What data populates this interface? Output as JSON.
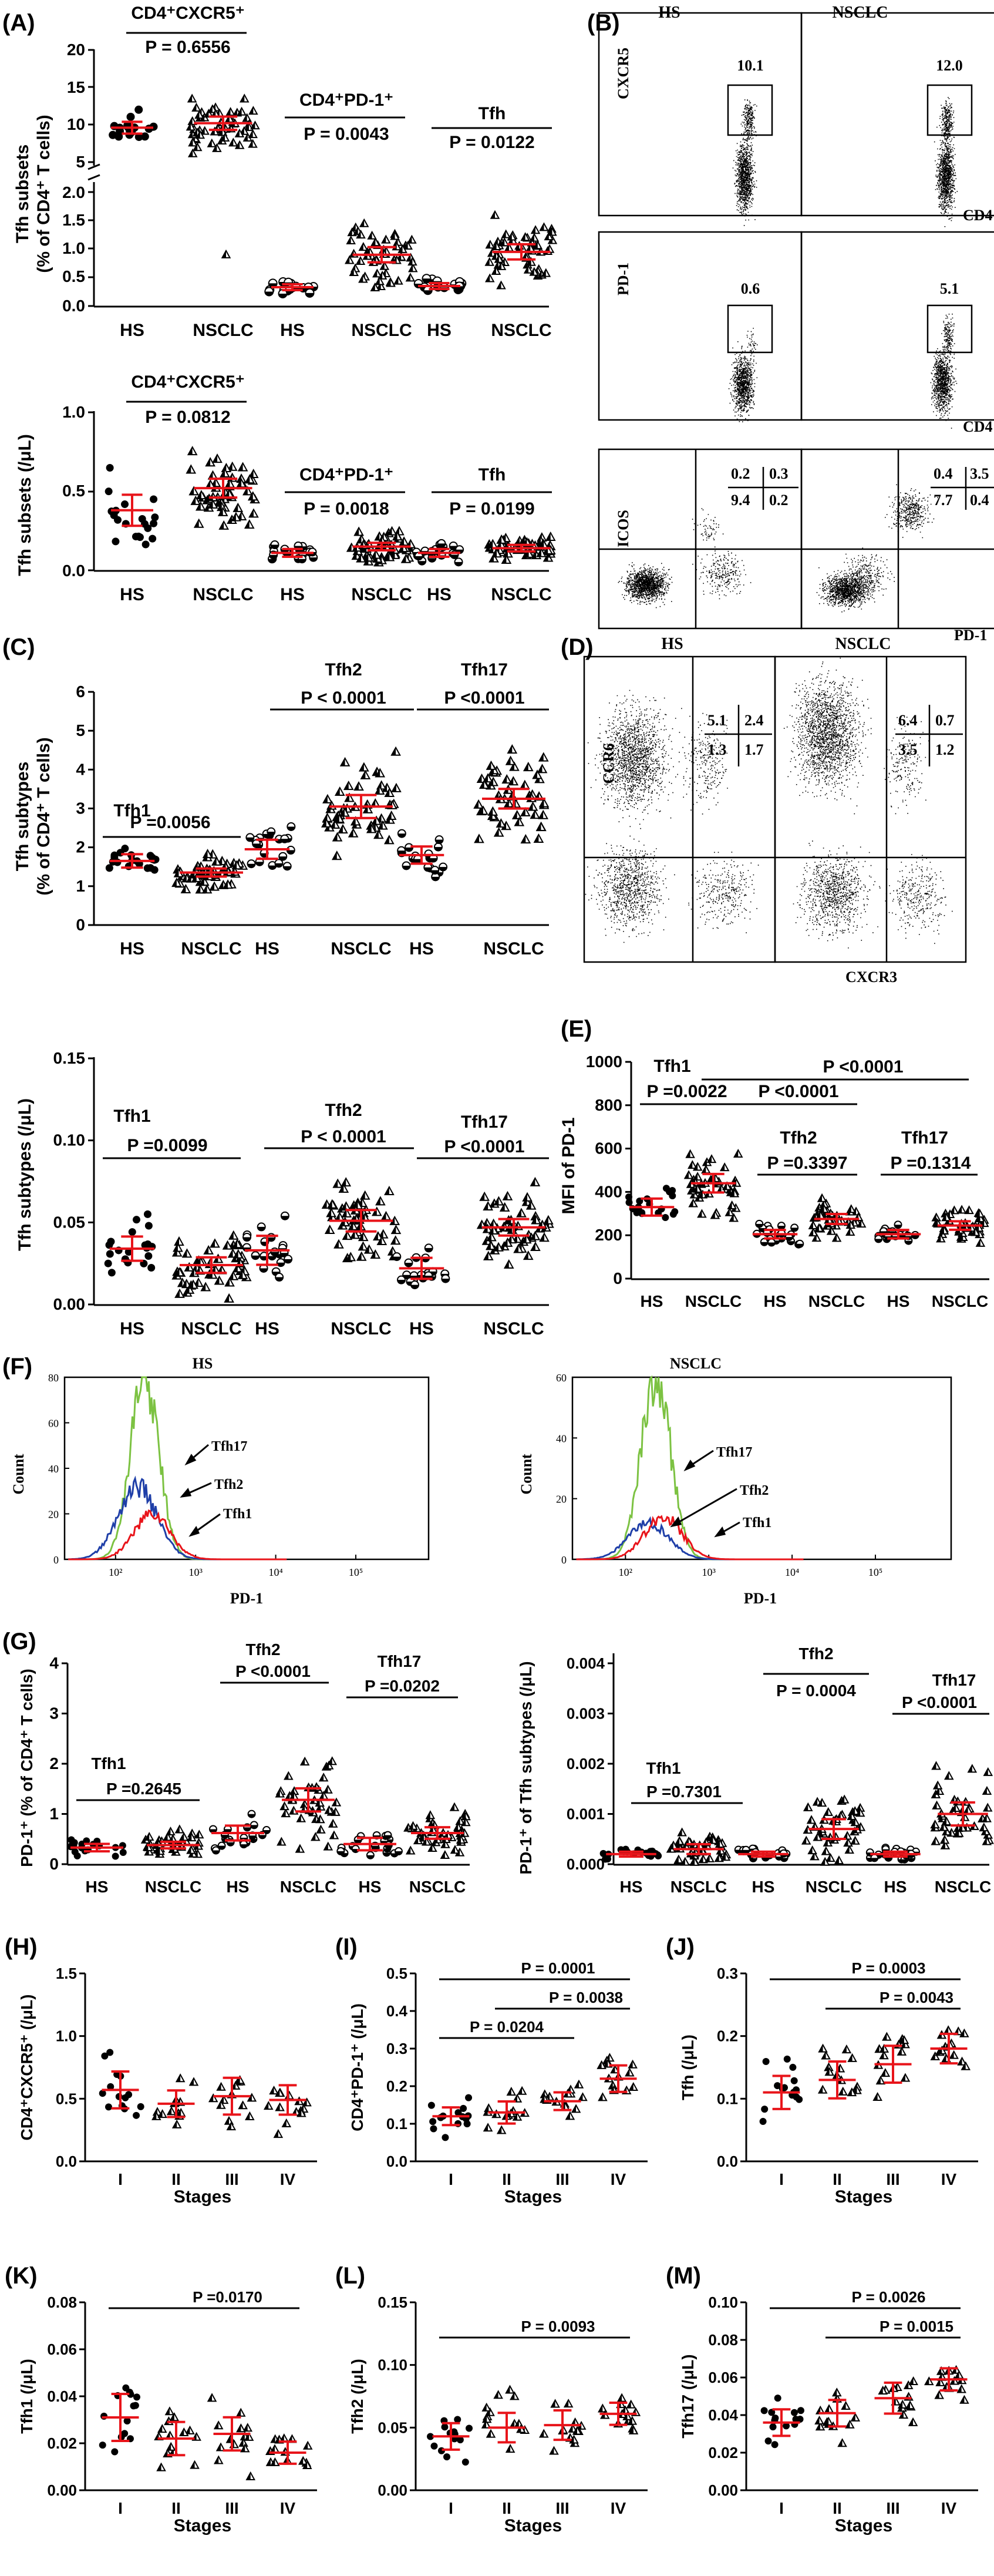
{
  "panels": [
    {
      "id": "A_top",
      "letter": "(A)",
      "ylabel_lines": [
        "Tfh subsets",
        "(% of CD4⁺ T cells)"
      ],
      "groups": [
        "HS",
        "NSCLC",
        "HS",
        "NSCLC",
        "HS",
        "NSCLC"
      ],
      "comparisons": [
        {
          "label": "CD4⁺CXCR5⁺",
          "p": "P = 0.6556"
        },
        {
          "label": "CD4⁺PD-1⁺",
          "p": "P = 0.0043"
        },
        {
          "label": "Tfh",
          "p": "P = 0.0122"
        }
      ]
    },
    {
      "id": "A_bottom",
      "letter": "",
      "ylabel_lines": [
        "Tfh subsets (/μL)"
      ],
      "groups": [
        "HS",
        "NSCLC",
        "HS",
        "NSCLC",
        "HS",
        "NSCLC"
      ],
      "comparisons": [
        {
          "label": "CD4⁺CXCR5⁺",
          "p": "P = 0.0812"
        },
        {
          "label": "CD4⁺PD-1⁺",
          "p": "P = 0.0018"
        },
        {
          "label": "Tfh",
          "p": "P = 0.0199"
        }
      ]
    },
    {
      "id": "C_top",
      "letter": "(C)",
      "ylabel_lines": [
        "Tfh subtypes",
        "(% of CD4⁺ T cells)"
      ],
      "groups": [
        "HS",
        "NSCLC",
        "HS",
        "NSCLC",
        "HS",
        "NSCLC"
      ],
      "comparisons": [
        {
          "label": "Tfh1",
          "p": "P =0.0056"
        },
        {
          "label": "Tfh2",
          "p": "P < 0.0001"
        },
        {
          "label": "Tfh17",
          "p": "P <0.0001"
        }
      ]
    },
    {
      "id": "C_bottom",
      "letter": "",
      "ylabel_lines": [
        "Tfh subtypes (/μL)"
      ],
      "groups": [
        "HS",
        "NSCLC",
        "HS",
        "NSCLC",
        "HS",
        "NSCLC"
      ],
      "comparisons": [
        {
          "label": "Tfh1",
          "p": "P =0.0099"
        },
        {
          "label": "Tfh2",
          "p": "P < 0.0001"
        },
        {
          "label": "Tfh17",
          "p": "P <0.0001"
        }
      ]
    },
    {
      "id": "E",
      "letter": "(E)",
      "ylabel_lines": [
        "MFI of PD-1"
      ],
      "groups": [
        "HS",
        "NSCLC",
        "HS",
        "NSCLC",
        "HS",
        "NSCLC"
      ],
      "comparisons": [
        {
          "label": "Tfh1",
          "p": "P =0.0022"
        },
        {
          "label": "Tfh2",
          "p": "P =0.3397"
        },
        {
          "label": "Tfh17",
          "p": "P =0.1314"
        }
      ],
      "extra": [
        {
          "p": "P <0.0001"
        },
        {
          "p": "P <0.0001"
        }
      ]
    },
    {
      "id": "G_left",
      "letter": "(G)",
      "ylabel_lines": [
        "PD-1⁺ (% of CD4⁺ T cells)"
      ],
      "groups": [
        "HS",
        "NSCLC",
        "HS",
        "NSCLC",
        "HS",
        "NSCLC"
      ],
      "comparisons": [
        {
          "label": "Tfh1",
          "p": "P =0.2645"
        },
        {
          "label": "Tfh2",
          "p": "P <0.0001"
        },
        {
          "label": "Tfh17",
          "p": "P =0.0202"
        }
      ]
    },
    {
      "id": "G_right",
      "letter": "",
      "ylabel_lines": [
        "PD-1⁺ of Tfh subtypes (/μL)"
      ],
      "groups": [
        "HS",
        "NSCLC",
        "HS",
        "NSCLC",
        "HS",
        "NSCLC"
      ],
      "comparisons": [
        {
          "label": "Tfh1",
          "p": "P =0.7301"
        },
        {
          "label": "Tfh2",
          "p": "P = 0.0004"
        },
        {
          "label": "Tfh17",
          "p": "P <0.0001"
        }
      ]
    },
    {
      "id": "H",
      "letter": "(H)",
      "ylabel_lines": [
        "CD4⁺CXCR5⁺ (/μL)"
      ],
      "xlabel": "Stages",
      "groups": [
        "I",
        "II",
        "III",
        "IV"
      ],
      "comparisons": []
    },
    {
      "id": "I",
      "letter": "(I)",
      "ylabel_lines": [
        "CD4⁺PD-1⁺ (/μL)"
      ],
      "xlabel": "Stages",
      "groups": [
        "I",
        "II",
        "III",
        "IV"
      ],
      "comparisons": [
        {
          "p": "P = 0.0001"
        },
        {
          "p": "P = 0.0038"
        },
        {
          "p": "P = 0.0204"
        }
      ]
    },
    {
      "id": "J",
      "letter": "(J)",
      "ylabel_lines": [
        "Tfh (/μL)"
      ],
      "xlabel": "Stages",
      "groups": [
        "I",
        "II",
        "III",
        "IV"
      ],
      "comparisons": [
        {
          "p": "P = 0.0003"
        },
        {
          "p": "P = 0.0043"
        }
      ]
    },
    {
      "id": "K",
      "letter": "(K)",
      "ylabel_lines": [
        "Tfh1 (/μL)"
      ],
      "xlabel": "Stages",
      "groups": [
        "I",
        "II",
        "III",
        "IV"
      ],
      "comparisons": [
        {
          "p": "P =0.0170"
        }
      ]
    },
    {
      "id": "L",
      "letter": "(L)",
      "ylabel_lines": [
        "Tfh2 (/μL)"
      ],
      "xlabel": "Stages",
      "groups": [
        "I",
        "II",
        "III",
        "IV"
      ],
      "comparisons": [
        {
          "p": "P = 0.0093"
        }
      ]
    },
    {
      "id": "M",
      "letter": "(M)",
      "ylabel_lines": [
        "Tfh17 (/μL)"
      ],
      "xlabel": "Stages",
      "groups": [
        "I",
        "II",
        "III",
        "IV"
      ],
      "comparisons": [
        {
          "p": "P = 0.0026"
        },
        {
          "p": "P = 0.0015"
        }
      ]
    }
  ],
  "flow_B": {
    "letter": "(B)",
    "col_labels": [
      "HS",
      "NSCLC"
    ],
    "row1": {
      "y_axis": "CXCR5",
      "x_axis": "CD4",
      "values": [
        "10.1",
        "12.0"
      ]
    },
    "row2": {
      "y_axis": "PD-1",
      "x_axis": "CD4",
      "values": [
        "0.6",
        "5.1"
      ]
    },
    "row3": {
      "y_axis": "ICOS",
      "x_axis": "PD-1",
      "quadrants": [
        [
          "0.2",
          "0.3",
          "9.4",
          "0.2"
        ],
        [
          "0.4",
          "3.5",
          "7.7",
          "0.4"
        ]
      ]
    }
  },
  "flow_D": {
    "letter": "(D)",
    "col_labels": [
      "HS",
      "NSCLC"
    ],
    "y_axis": "CCR6",
    "x_axis": "CXCR3",
    "quadrants": [
      [
        "5.1",
        "2.4",
        "1.3",
        "1.7"
      ],
      [
        "6.4",
        "0.7",
        "3.5",
        "1.2"
      ]
    ]
  },
  "histograms_F": {
    "letter": "(F)",
    "ylabel": "Count",
    "xlabel": "PD-1",
    "panels": [
      {
        "title": "HS"
      },
      {
        "title": "NSCLC"
      }
    ],
    "series": [
      {
        "name": "Tfh17",
        "color": "#7cc242"
      },
      {
        "name": "Tfh2",
        "color": "#1f3fa8"
      },
      {
        "name": "Tfh1",
        "color": "#e8141a"
      }
    ]
  },
  "colors": {
    "mean": "#e8141a",
    "axis": "#000000",
    "tfh17": "#7cc242",
    "tfh2": "#1f3fa8",
    "tfh1": "#e8141a"
  },
  "chart_data": [
    {
      "type": "scatter",
      "panel": "A_top",
      "ylabel": "Tfh subsets (% of CD4+ T cells)",
      "categories": [
        "HS",
        "NSCLC",
        "HS",
        "NSCLC",
        "HS",
        "NSCLC"
      ],
      "axis_break": {
        "lower": [
          0,
          2.0
        ],
        "upper": [
          5,
          20
        ]
      },
      "ylim": [
        0,
        20
      ],
      "y_ticks": [
        0,
        0.5,
        1.0,
        1.5,
        2.0,
        5,
        10,
        15,
        20
      ],
      "series": [
        {
          "values_mean": [
            9.6,
            10.2,
            0.33,
            0.9,
            0.35,
            0.95
          ]
        }
      ]
    },
    {
      "type": "scatter",
      "panel": "A_bottom",
      "ylabel": "Tfh subsets (/μL)",
      "categories": [
        "HS",
        "NSCLC",
        "HS",
        "NSCLC",
        "HS",
        "NSCLC"
      ],
      "ylim": [
        0,
        1.0
      ],
      "y_ticks": [
        0,
        0.5,
        1.0
      ],
      "series": [
        {
          "values_mean": [
            0.38,
            0.52,
            0.11,
            0.15,
            0.11,
            0.14
          ]
        }
      ]
    },
    {
      "type": "scatter",
      "panel": "C_top",
      "ylabel": "Tfh subtypes (% of CD4+ T cells)",
      "categories": [
        "HS",
        "NSCLC",
        "HS",
        "NSCLC",
        "HS",
        "NSCLC"
      ],
      "ylim": [
        0,
        6
      ],
      "y_ticks": [
        0,
        1,
        2,
        3,
        4,
        5,
        6
      ],
      "series": [
        {
          "values_mean": [
            1.65,
            1.35,
            1.95,
            3.05,
            1.8,
            3.25
          ]
        }
      ]
    },
    {
      "type": "scatter",
      "panel": "C_bottom",
      "ylabel": "Tfh subtypes (/μL)",
      "categories": [
        "HS",
        "NSCLC",
        "HS",
        "NSCLC",
        "HS",
        "NSCLC"
      ],
      "ylim": [
        0,
        0.15
      ],
      "y_ticks": [
        0,
        0.05,
        0.1,
        0.15
      ],
      "series": [
        {
          "values_mean": [
            0.034,
            0.024,
            0.033,
            0.051,
            0.022,
            0.047
          ]
        }
      ]
    },
    {
      "type": "scatter",
      "panel": "E",
      "ylabel": "MFI of PD-1",
      "categories": [
        "HS",
        "NSCLC",
        "HS",
        "NSCLC",
        "HS",
        "NSCLC"
      ],
      "ylim": [
        0,
        1000
      ],
      "y_ticks": [
        0,
        200,
        400,
        600,
        800,
        1000
      ],
      "series": [
        {
          "values_mean": [
            330,
            440,
            205,
            275,
            205,
            245
          ]
        }
      ]
    },
    {
      "type": "line",
      "panel": "F_HS",
      "xlabel": "PD-1",
      "ylabel": "Count",
      "x_scale": "log",
      "xlim": [
        10,
        1000000.0
      ],
      "ylim": [
        0,
        80
      ],
      "y_ticks": [
        0,
        20,
        40,
        60,
        80
      ],
      "x_ticks": [
        "10²",
        "10³",
        "10⁴",
        "10⁵"
      ],
      "series": [
        {
          "name": "Tfh17",
          "peak": 80
        },
        {
          "name": "Tfh2",
          "peak": 32
        },
        {
          "name": "Tfh1",
          "peak": 20
        }
      ]
    },
    {
      "type": "line",
      "panel": "F_NSCLC",
      "xlabel": "PD-1",
      "ylabel": "Count",
      "x_scale": "log",
      "xlim": [
        10,
        1000000.0
      ],
      "ylim": [
        0,
        60
      ],
      "y_ticks": [
        0,
        20,
        40,
        60
      ],
      "x_ticks": [
        "10²",
        "10³",
        "10⁴",
        "10⁵"
      ],
      "series": [
        {
          "name": "Tfh17",
          "peak": 60
        },
        {
          "name": "Tfh2",
          "peak": 12
        },
        {
          "name": "Tfh1",
          "peak": 14
        }
      ]
    },
    {
      "type": "scatter",
      "panel": "G_left",
      "ylabel": "PD-1+ (% of CD4+ T cells)",
      "categories": [
        "HS",
        "NSCLC",
        "HS",
        "NSCLC",
        "HS",
        "NSCLC"
      ],
      "ylim": [
        0,
        4
      ],
      "y_ticks": [
        0,
        1,
        2,
        3,
        4
      ],
      "series": [
        {
          "values_mean": [
            0.33,
            0.38,
            0.62,
            1.28,
            0.4,
            0.62
          ]
        }
      ]
    },
    {
      "type": "scatter",
      "panel": "G_right",
      "ylabel": "PD-1+ of Tfh subtypes (/μL)",
      "categories": [
        "HS",
        "NSCLC",
        "HS",
        "NSCLC",
        "HS",
        "NSCLC"
      ],
      "ylim": [
        0,
        0.004
      ],
      "y_ticks": [
        0,
        0.001,
        0.002,
        0.003,
        0.004
      ],
      "series": [
        {
          "values_mean": [
            0.0002,
            0.0003,
            0.0002,
            0.0007,
            0.0002,
            0.001
          ]
        }
      ]
    },
    {
      "type": "scatter",
      "panel": "H",
      "xlabel": "Stages",
      "ylabel": "CD4+CXCR5+ (/μL)",
      "categories": [
        "I",
        "II",
        "III",
        "IV"
      ],
      "ylim": [
        0,
        1.5
      ],
      "y_ticks": [
        0,
        0.5,
        1.0,
        1.5
      ],
      "series": [
        {
          "values_mean": [
            0.57,
            0.46,
            0.52,
            0.49
          ]
        }
      ]
    },
    {
      "type": "scatter",
      "panel": "I",
      "xlabel": "Stages",
      "ylabel": "CD4+PD-1+ (/μL)",
      "categories": [
        "I",
        "II",
        "III",
        "IV"
      ],
      "ylim": [
        0,
        0.5
      ],
      "y_ticks": [
        0,
        0.1,
        0.2,
        0.3,
        0.4,
        0.5
      ],
      "series": [
        {
          "values_mean": [
            0.12,
            0.13,
            0.16,
            0.22
          ]
        }
      ]
    },
    {
      "type": "scatter",
      "panel": "J",
      "xlabel": "Stages",
      "ylabel": "Tfh (/μL)",
      "categories": [
        "I",
        "II",
        "III",
        "IV"
      ],
      "ylim": [
        0,
        0.3
      ],
      "y_ticks": [
        0,
        0.1,
        0.2,
        0.3
      ],
      "series": [
        {
          "values_mean": [
            0.11,
            0.13,
            0.155,
            0.18
          ]
        }
      ]
    },
    {
      "type": "scatter",
      "panel": "K",
      "xlabel": "Stages",
      "ylabel": "Tfh1 (/μL)",
      "categories": [
        "I",
        "II",
        "III",
        "IV"
      ],
      "ylim": [
        0,
        0.08
      ],
      "y_ticks": [
        0,
        0.02,
        0.04,
        0.06,
        0.08
      ],
      "series": [
        {
          "values_mean": [
            0.031,
            0.022,
            0.024,
            0.016
          ]
        }
      ]
    },
    {
      "type": "scatter",
      "panel": "L",
      "xlabel": "Stages",
      "ylabel": "Tfh2 (/μL)",
      "categories": [
        "I",
        "II",
        "III",
        "IV"
      ],
      "ylim": [
        0,
        0.15
      ],
      "y_ticks": [
        0,
        0.05,
        0.1,
        0.15
      ],
      "series": [
        {
          "values_mean": [
            0.043,
            0.05,
            0.052,
            0.061
          ]
        }
      ]
    },
    {
      "type": "scatter",
      "panel": "M",
      "xlabel": "Stages",
      "ylabel": "Tfh17 (/μL)",
      "categories": [
        "I",
        "II",
        "III",
        "IV"
      ],
      "ylim": [
        0,
        0.1
      ],
      "y_ticks": [
        0,
        0.02,
        0.04,
        0.06,
        0.08,
        0.1
      ],
      "series": [
        {
          "values_mean": [
            0.036,
            0.041,
            0.049,
            0.059
          ]
        }
      ]
    }
  ]
}
